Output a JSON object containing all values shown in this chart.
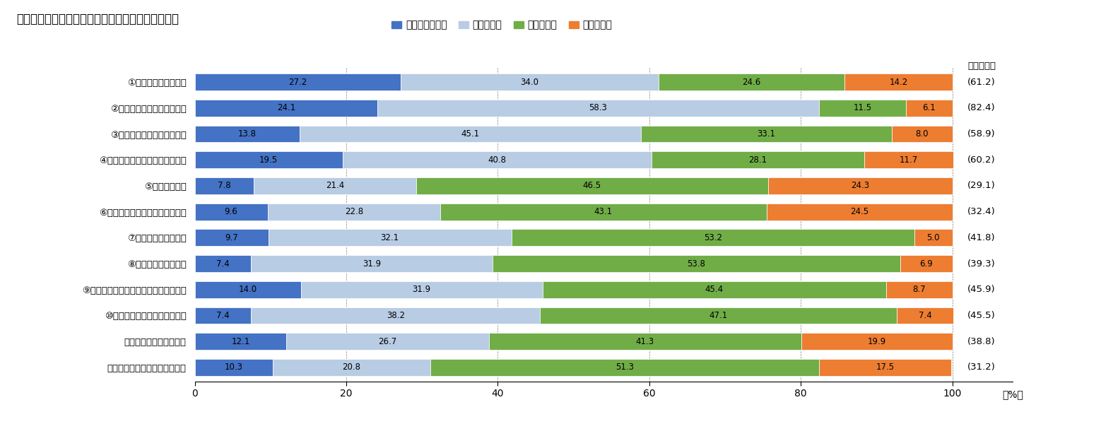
{
  "title": "図表３　中古住宅取得世帯の住み替え前後の改善度",
  "categories": [
    "①住宅の広さ・間取り",
    "②住宅の快適さ・使いやすさ",
    "③住宅の維持管理のしやすさ",
    "④住宅の断熱性、換気、採光など",
    "⑤光熱費の負担",
    "⑥ローン、家賃など住居費の負担",
    "⑦災害に対する安全性",
    "⑧犯罪に対する安全性",
    "⑨自然とのふれあいや外部空間のゆとり",
    "⑩高齢期の暮らしの安全・安心",
    "⑪通勤、通学などの利便",
    "⑫日常の買物、医療などの利便"
  ],
  "series": {
    "大変良くなった": [
      27.2,
      24.1,
      13.8,
      19.5,
      7.8,
      9.6,
      9.7,
      7.4,
      14.0,
      7.4,
      12.1,
      10.3
    ],
    "良くなった": [
      34.0,
      58.3,
      45.1,
      40.8,
      21.4,
      22.8,
      32.1,
      31.9,
      31.9,
      38.2,
      26.7,
      20.8
    ],
    "変わらない": [
      24.6,
      11.5,
      33.1,
      28.1,
      46.5,
      43.1,
      53.2,
      53.8,
      45.4,
      47.1,
      41.3,
      51.3
    ],
    "悪くなった": [
      14.2,
      6.1,
      8.0,
      11.7,
      24.3,
      24.5,
      5.0,
      6.9,
      8.7,
      7.4,
      19.9,
      17.5
    ]
  },
  "improvement": [
    "(61.2)",
    "(82.4)",
    "(58.9)",
    "(60.2)",
    "(29.1)",
    "(32.4)",
    "(41.8)",
    "(39.3)",
    "(45.9)",
    "(45.5)",
    "(38.8)",
    "(31.2)"
  ],
  "colors": {
    "大変良くなった": "#4472C4",
    "良くなった": "#B8CCE4",
    "変わらない": "#70AD47",
    "悪くなった": "#ED7D31"
  },
  "legend_order": [
    "大変良くなった",
    "良くなった",
    "変わらない",
    "悪くなった"
  ],
  "improvement_label": "（改善度）",
  "xlim": [
    0,
    100
  ],
  "xticks": [
    0,
    20,
    40,
    60,
    80,
    100
  ],
  "background_color": "#FFFFFF",
  "bar_height": 0.65
}
